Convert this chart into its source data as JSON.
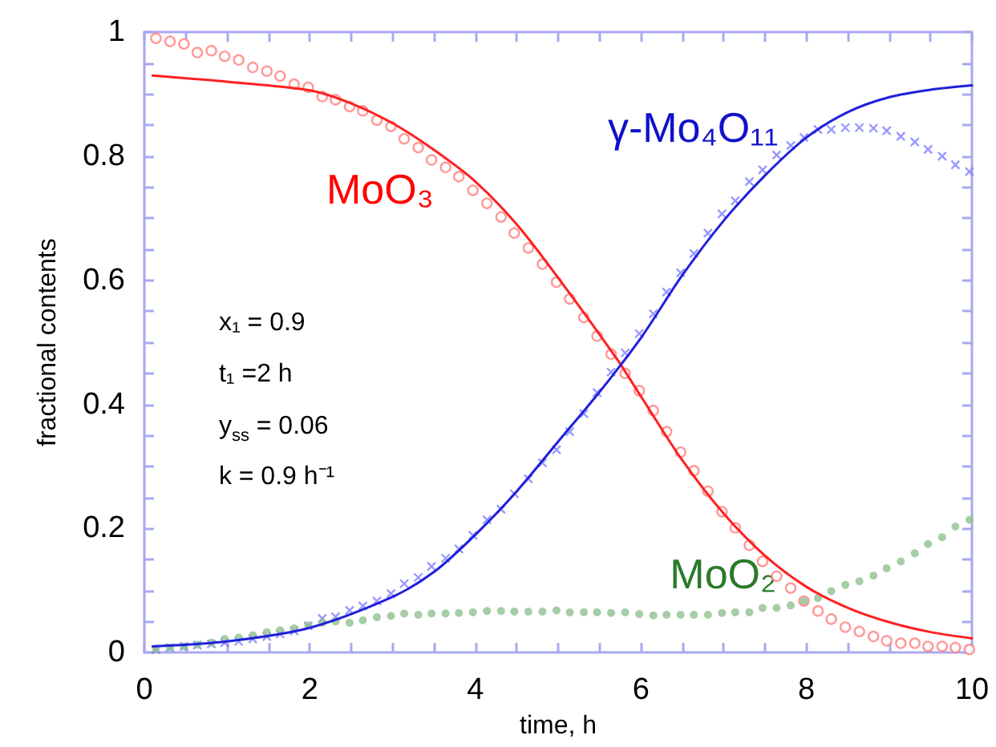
{
  "chart_data": {
    "type": "scatter",
    "xlabel": "time, h",
    "ylabel": "fractional contents",
    "xlim": [
      0,
      10
    ],
    "ylim": [
      0,
      1
    ],
    "xticks": [
      0,
      {
        "value": 0.5,
        "label": null
      },
      2,
      {
        "value": 1,
        "label": null
      },
      {
        "value": 1.5,
        "label": null
      },
      {
        "value": 2.5,
        "label": null
      },
      {
        "value": 3,
        "label": null
      },
      {
        "value": 3.5,
        "label": null
      },
      4,
      {
        "value": 4.5,
        "label": null
      },
      {
        "value": 5,
        "label": null
      },
      {
        "value": 5.5,
        "label": null
      },
      6,
      {
        "value": 6.5,
        "label": null
      },
      {
        "value": 7,
        "label": null
      },
      {
        "value": 7.5,
        "label": null
      },
      8,
      {
        "value": 8.5,
        "label": null
      },
      {
        "value": 9,
        "label": null
      },
      {
        "value": 9.5,
        "label": null
      },
      10
    ],
    "yticks": [
      0,
      {
        "value": 0.05,
        "label": null
      },
      {
        "value": 0.1,
        "label": null
      },
      {
        "value": 0.15,
        "label": null
      },
      0.2,
      {
        "value": 0.25,
        "label": null
      },
      {
        "value": 0.3,
        "label": null
      },
      {
        "value": 0.35,
        "label": null
      },
      0.4,
      {
        "value": 0.45,
        "label": null
      },
      {
        "value": 0.5,
        "label": null
      },
      {
        "value": 0.55,
        "label": null
      },
      0.6,
      {
        "value": 0.65,
        "label": null
      },
      {
        "value": 0.7,
        "label": null
      },
      {
        "value": 0.75,
        "label": null
      },
      0.8,
      {
        "value": 0.85,
        "label": null
      },
      {
        "value": 0.9,
        "label": null
      },
      {
        "value": 0.95,
        "label": null
      },
      1
    ],
    "grid": false,
    "legend": false,
    "annotations": [
      "x₁ = 0.9",
      "t₁ =2 h",
      "y$_{ss}$ = 0.06",
      "k = 0.9 h⁻¹"
    ],
    "series": [
      {
        "marker": "circle",
        "color": "#ff8080",
        "x": [
          0.14,
          0.31,
          0.48,
          0.64,
          0.81,
          0.97,
          1.14,
          1.31,
          1.48,
          1.64,
          1.81,
          1.98,
          2.15,
          2.31,
          2.48,
          2.64,
          2.81,
          2.98,
          3.14,
          3.31,
          3.47,
          3.64,
          3.8,
          3.97,
          4.14,
          4.31,
          4.47,
          4.64,
          4.81,
          4.98,
          5.14,
          5.31,
          5.47,
          5.64,
          5.81,
          5.98,
          6.15,
          6.31,
          6.48,
          6.64,
          6.81,
          6.98,
          7.14,
          7.31,
          7.47,
          7.64,
          7.81,
          7.97,
          8.14,
          8.3,
          8.47,
          8.64,
          8.81,
          8.97,
          9.14,
          9.31,
          9.47,
          9.64,
          9.8,
          9.97
        ],
        "values": [
          0.99,
          0.985,
          0.981,
          0.967,
          0.97,
          0.961,
          0.955,
          0.943,
          0.937,
          0.929,
          0.916,
          0.911,
          0.896,
          0.891,
          0.88,
          0.873,
          0.858,
          0.848,
          0.828,
          0.814,
          0.794,
          0.782,
          0.767,
          0.745,
          0.724,
          0.702,
          0.676,
          0.652,
          0.626,
          0.597,
          0.57,
          0.54,
          0.51,
          0.481,
          0.45,
          0.422,
          0.39,
          0.356,
          0.323,
          0.293,
          0.26,
          0.227,
          0.201,
          0.173,
          0.147,
          0.123,
          0.104,
          0.083,
          0.067,
          0.054,
          0.041,
          0.034,
          0.026,
          0.019,
          0.015,
          0.015,
          0.01,
          0.01,
          0.008,
          0.005
        ]
      },
      {
        "type": "line",
        "name": "MoO₃",
        "color": "#ff2020",
        "marker": "none",
        "x": [
          0.1,
          1,
          2,
          2.5,
          3,
          3.5,
          4,
          4.5,
          5,
          5.7,
          6,
          6.5,
          7,
          7.5,
          8,
          8.5,
          9,
          9.5,
          10
        ],
        "values": [
          0.93,
          0.92,
          0.906,
          0.885,
          0.853,
          0.81,
          0.759,
          0.69,
          0.604,
          0.475,
          0.413,
          0.31,
          0.224,
          0.156,
          0.106,
          0.072,
          0.049,
          0.033,
          0.023
        ]
      },
      {
        "marker": "cross",
        "color": "#8080ff",
        "x": [
          0.14,
          0.31,
          0.48,
          0.64,
          0.81,
          0.97,
          1.14,
          1.31,
          1.48,
          1.64,
          1.81,
          1.98,
          2.15,
          2.31,
          2.48,
          2.64,
          2.81,
          2.98,
          3.14,
          3.31,
          3.47,
          3.64,
          3.8,
          3.97,
          4.14,
          4.31,
          4.47,
          4.64,
          4.81,
          4.98,
          5.14,
          5.31,
          5.47,
          5.64,
          5.81,
          5.98,
          6.15,
          6.31,
          6.48,
          6.64,
          6.81,
          6.98,
          7.14,
          7.31,
          7.47,
          7.64,
          7.81,
          7.97,
          8.14,
          8.3,
          8.47,
          8.64,
          8.81,
          8.97,
          9.14,
          9.31,
          9.47,
          9.64,
          9.8,
          9.97
        ],
        "values": [
          0.005,
          0.008,
          0.01,
          0.012,
          0.014,
          0.016,
          0.018,
          0.022,
          0.026,
          0.03,
          0.035,
          0.043,
          0.055,
          0.058,
          0.068,
          0.075,
          0.083,
          0.095,
          0.111,
          0.121,
          0.139,
          0.152,
          0.167,
          0.189,
          0.214,
          0.231,
          0.256,
          0.28,
          0.306,
          0.327,
          0.356,
          0.385,
          0.419,
          0.452,
          0.483,
          0.514,
          0.546,
          0.581,
          0.612,
          0.643,
          0.676,
          0.707,
          0.728,
          0.759,
          0.778,
          0.802,
          0.817,
          0.83,
          0.843,
          0.843,
          0.846,
          0.846,
          0.845,
          0.841,
          0.832,
          0.823,
          0.811,
          0.8,
          0.786,
          0.775
        ]
      },
      {
        "type": "line",
        "name": "γ-Mo₄O₁₁",
        "color": "#2020dd",
        "marker": "none",
        "x": [
          0.1,
          1,
          2,
          3,
          3.5,
          4,
          4.5,
          5,
          5.5,
          6,
          6.5,
          7,
          7.5,
          8,
          8.5,
          9,
          9.5,
          10
        ],
        "values": [
          0.01,
          0.018,
          0.04,
          0.09,
          0.13,
          0.19,
          0.26,
          0.34,
          0.42,
          0.507,
          0.608,
          0.696,
          0.769,
          0.83,
          0.871,
          0.895,
          0.907,
          0.914
        ]
      },
      {
        "name": "MoO₂",
        "marker": "circle",
        "color": "#90c090",
        "x": [
          0.14,
          0.31,
          0.48,
          0.64,
          0.81,
          0.97,
          1.14,
          1.31,
          1.48,
          1.64,
          1.81,
          1.98,
          2.15,
          2.31,
          2.48,
          2.64,
          2.81,
          2.98,
          3.14,
          3.31,
          3.47,
          3.64,
          3.8,
          3.97,
          4.14,
          4.31,
          4.47,
          4.64,
          4.81,
          4.98,
          5.14,
          5.31,
          5.47,
          5.64,
          5.81,
          5.98,
          6.15,
          6.31,
          6.48,
          6.64,
          6.81,
          6.98,
          7.14,
          7.31,
          7.47,
          7.64,
          7.81,
          7.97,
          8.14,
          8.3,
          8.47,
          8.64,
          8.81,
          8.97,
          9.14,
          9.31,
          9.47,
          9.64,
          9.8,
          9.97
        ],
        "values": [
          0.006,
          0.008,
          0.01,
          0.013,
          0.016,
          0.022,
          0.024,
          0.028,
          0.033,
          0.036,
          0.039,
          0.044,
          0.048,
          0.05,
          0.048,
          0.052,
          0.057,
          0.059,
          0.063,
          0.061,
          0.063,
          0.063,
          0.064,
          0.065,
          0.067,
          0.067,
          0.066,
          0.066,
          0.066,
          0.068,
          0.065,
          0.065,
          0.065,
          0.064,
          0.065,
          0.062,
          0.06,
          0.061,
          0.061,
          0.061,
          0.061,
          0.064,
          0.065,
          0.065,
          0.072,
          0.072,
          0.076,
          0.083,
          0.088,
          0.099,
          0.109,
          0.115,
          0.124,
          0.136,
          0.147,
          0.16,
          0.175,
          0.186,
          0.203,
          0.214
        ]
      }
    ]
  }
}
